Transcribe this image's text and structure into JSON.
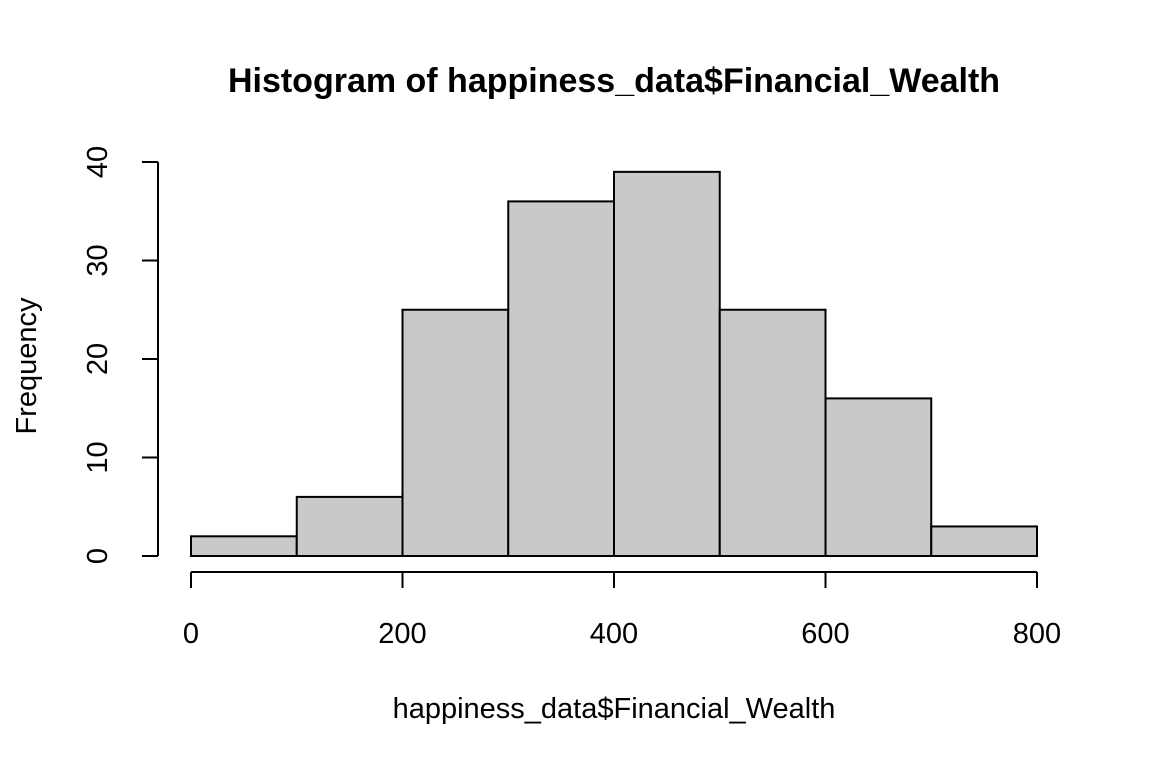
{
  "chart_data": {
    "type": "bar",
    "title": "Histogram of happiness_data$Financial_Wealth",
    "xlabel": "happiness_data$Financial_Wealth",
    "ylabel": "Frequency",
    "bins": [
      {
        "from": 0,
        "to": 100,
        "count": 2
      },
      {
        "from": 100,
        "to": 200,
        "count": 6
      },
      {
        "from": 200,
        "to": 300,
        "count": 25
      },
      {
        "from": 300,
        "to": 400,
        "count": 36
      },
      {
        "from": 400,
        "to": 500,
        "count": 39
      },
      {
        "from": 500,
        "to": 600,
        "count": 25
      },
      {
        "from": 600,
        "to": 700,
        "count": 16
      },
      {
        "from": 700,
        "to": 800,
        "count": 3
      }
    ],
    "xlim": [
      0,
      800
    ],
    "ylim": [
      0,
      40
    ],
    "x_ticks": [
      "0",
      "200",
      "400",
      "600",
      "800"
    ],
    "y_ticks": [
      "0",
      "10",
      "20",
      "30",
      "40"
    ],
    "bar_color": "#c9c9c9",
    "grid": false
  }
}
